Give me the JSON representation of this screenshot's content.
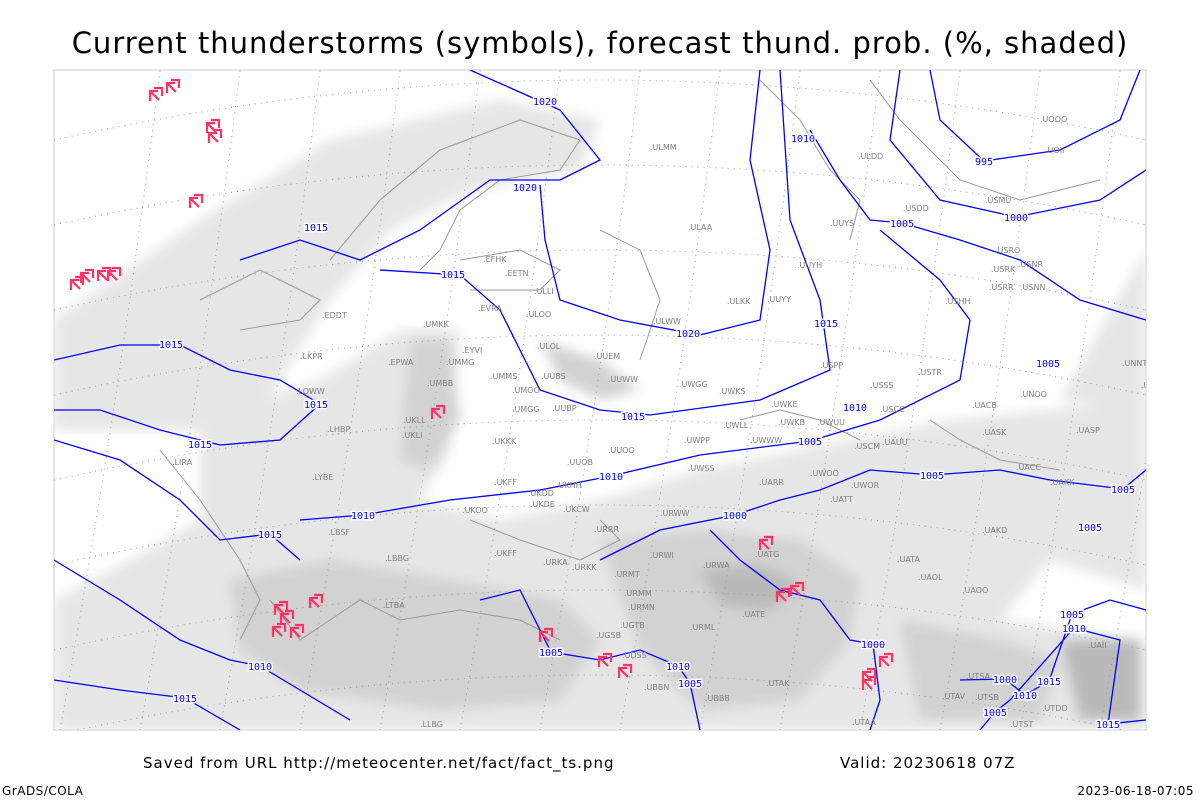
{
  "title": "Current thunderstorms (symbols), forecast thund. prob. (%, shaded)",
  "footer": {
    "saved_from": "Saved from URL http://meteocenter.net/fact/fact_ts.png",
    "valid": "Valid: 20230618 07Z",
    "software": "GrADS/COLA",
    "timestamp": "2023-06-18-07:05"
  },
  "colors": {
    "isobar": "#0000ff",
    "thunderstorm_symbol": "#ff3366",
    "shading_light": "#e6e6e6",
    "shading_mid": "#d2d2d2",
    "shading_dark": "#b9b9b9",
    "station_label": "#808080",
    "coastline": "#999999"
  },
  "legend": {
    "symbols": "current thunderstorms",
    "shading": "forecast thunderstorm probability (%)"
  },
  "isobar_labels": [
    "1020",
    "1020",
    "1015",
    "1015",
    "1015",
    "1015",
    "1015",
    "1010",
    "1015",
    "1010",
    "1015",
    "1020",
    "1015",
    "1010",
    "1005",
    "1010",
    "995",
    "1000",
    "1005",
    "1005",
    "1005",
    "1005",
    "1005",
    "1000",
    "1000",
    "1005",
    "1010",
    "1005",
    "1010",
    "1015",
    "1005",
    "1010",
    "1015",
    "1010",
    "1005",
    "1015",
    "1000"
  ],
  "stations": [
    "EDDT",
    "EPWA",
    "UMKK",
    "EVRA",
    "ULOO",
    "ULOL",
    "UUEM",
    "UUWW",
    "UWGG",
    "UWKS",
    "UMMG",
    "EYVI",
    "UMMS",
    "UMOO",
    "UUBS",
    "UMBB",
    "UKLL",
    "UKLI",
    "UMGG",
    "UUBP",
    "UKKK",
    "UUOO",
    "UUOB",
    "UKHH",
    "UKDD",
    "UKFF",
    "UKOO",
    "UKDE",
    "UKCW",
    "URRR",
    "URWW",
    "UKFF",
    "URKA",
    "URKK",
    "URMT",
    "URMM",
    "URMN",
    "URWI",
    "URWA",
    "UATG",
    "UATT",
    "UATA",
    "UAOL",
    "UAOO",
    "UARR",
    "UWOO",
    "UWOR",
    "UWPP",
    "UWSS",
    "UWWW",
    "UWLL",
    "UWKE",
    "UWKB",
    "UWUU",
    "USCM",
    "UAUU",
    "USCC",
    "USSS",
    "USPP",
    "USTR",
    "UACC",
    "UASP",
    "UASK",
    "UACB",
    "UNOO",
    "UNNT",
    "UNBB",
    "UAKK",
    "UAKD",
    "ULAA",
    "ULMM",
    "UUYY",
    "ULKK",
    "UUYS",
    "UUYH",
    "ULWW",
    "ULDD",
    "USDD",
    "USMU",
    "USRO",
    "USRK",
    "USNR",
    "USRR",
    "USNN",
    "USHH",
    "UOOO",
    "UOII",
    "EFHK",
    "EETN",
    "ULLI",
    "LKPR",
    "LOWW",
    "LHBP",
    "LYBE",
    "LBSF",
    "LBBG",
    "LTBA",
    "LIRA",
    "UGSB",
    "UGTB",
    "UDSS",
    "UBBN",
    "UBBB",
    "UTAK",
    "UTAV",
    "UTSA",
    "UTAA",
    "URML",
    "UATE",
    "UAII",
    "UTDD",
    "UTSB",
    "UTST",
    "LLBG"
  ]
}
